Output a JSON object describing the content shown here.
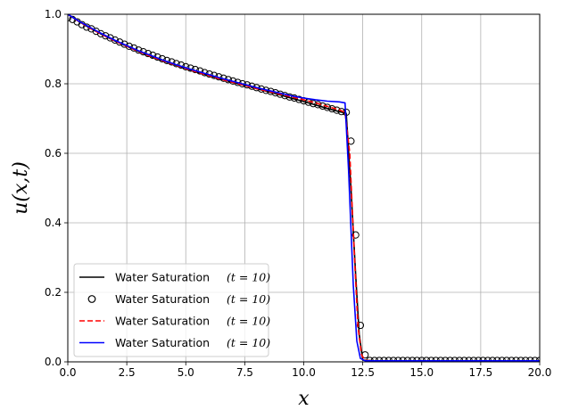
{
  "chart_data": {
    "type": "line",
    "xlabel": "x",
    "ylabel": "u(x,t)",
    "xlim": [
      0,
      20
    ],
    "ylim": [
      0,
      1
    ],
    "grid": true,
    "x_ticks": [
      0,
      2.5,
      5,
      7.5,
      10,
      12.5,
      15,
      17.5,
      20
    ],
    "x_tick_labels": [
      "0.0",
      "2.5",
      "5.0",
      "7.5",
      "10.0",
      "12.5",
      "15.0",
      "17.5",
      "20.0"
    ],
    "y_ticks": [
      0,
      0.2,
      0.4,
      0.6,
      0.8,
      1.0
    ],
    "y_tick_labels": [
      "0.0",
      "0.2",
      "0.4",
      "0.6",
      "0.8",
      "1.0"
    ],
    "legend_position": "lower-left",
    "series": [
      {
        "name": "Water Saturation",
        "name_suffix": "(t = 10)",
        "style": "solid",
        "color": "#000000",
        "marker": "none",
        "x": [
          0,
          0.5,
          1,
          1.5,
          2,
          2.5,
          3,
          3.5,
          4,
          4.5,
          5,
          5.5,
          6,
          6.5,
          7,
          7.5,
          8,
          8.5,
          9,
          9.5,
          10,
          10.5,
          11,
          11.5,
          11.8,
          12.0,
          12.2,
          12.35,
          12.5,
          13,
          14,
          15,
          16,
          17,
          18,
          19,
          20
        ],
        "y": [
          1.0,
          0.978,
          0.958,
          0.94,
          0.923,
          0.908,
          0.893,
          0.879,
          0.867,
          0.855,
          0.844,
          0.833,
          0.823,
          0.813,
          0.804,
          0.795,
          0.786,
          0.777,
          0.768,
          0.758,
          0.749,
          0.739,
          0.729,
          0.72,
          0.715,
          0.5,
          0.25,
          0.08,
          0.005,
          0.003,
          0.003,
          0.003,
          0.003,
          0.003,
          0.003,
          0.003,
          0.003
        ]
      },
      {
        "name": "Water Saturation",
        "name_suffix": "(t = 10)",
        "style": "none",
        "color": "#000000",
        "marker": "open-circle",
        "x": [
          0.0,
          0.2,
          0.4,
          0.6,
          0.8,
          1.0,
          1.2,
          1.4,
          1.6,
          1.8,
          2.0,
          2.2,
          2.4,
          2.6,
          2.8,
          3.0,
          3.2,
          3.4,
          3.6,
          3.8,
          4.0,
          4.2,
          4.4,
          4.6,
          4.8,
          5.0,
          5.2,
          5.4,
          5.6,
          5.8,
          6.0,
          6.2,
          6.4,
          6.6,
          6.8,
          7.0,
          7.2,
          7.4,
          7.6,
          7.8,
          8.0,
          8.2,
          8.4,
          8.6,
          8.8,
          9.0,
          9.2,
          9.4,
          9.6,
          9.8,
          10.0,
          10.2,
          10.4,
          10.6,
          10.8,
          11.0,
          11.2,
          11.4,
          11.6,
          11.8,
          12.0,
          12.2,
          12.4,
          12.6,
          12.8,
          13.0,
          13.2,
          13.4,
          13.6,
          13.8,
          14.0,
          14.2,
          14.4,
          14.6,
          14.8,
          15.0,
          15.2,
          15.4,
          15.6,
          15.8,
          16.0,
          16.2,
          16.4,
          16.6,
          16.8,
          17.0,
          17.2,
          17.4,
          17.6,
          17.8,
          18.0,
          18.2,
          18.4,
          18.6,
          18.8,
          19.0,
          19.2,
          19.4,
          19.6,
          19.8,
          20.0
        ],
        "y": [
          0.99,
          0.985,
          0.978,
          0.97,
          0.963,
          0.958,
          0.951,
          0.944,
          0.938,
          0.932,
          0.926,
          0.92,
          0.914,
          0.908,
          0.903,
          0.897,
          0.892,
          0.887,
          0.882,
          0.877,
          0.872,
          0.867,
          0.863,
          0.858,
          0.854,
          0.849,
          0.845,
          0.841,
          0.837,
          0.832,
          0.828,
          0.824,
          0.82,
          0.816,
          0.812,
          0.808,
          0.804,
          0.8,
          0.797,
          0.793,
          0.789,
          0.785,
          0.781,
          0.778,
          0.774,
          0.77,
          0.766,
          0.762,
          0.759,
          0.755,
          0.751,
          0.747,
          0.743,
          0.74,
          0.736,
          0.732,
          0.728,
          0.724,
          0.72,
          0.718,
          0.635,
          0.365,
          0.105,
          0.02,
          0.004,
          0.004,
          0.004,
          0.004,
          0.004,
          0.004,
          0.004,
          0.004,
          0.004,
          0.004,
          0.004,
          0.004,
          0.004,
          0.004,
          0.004,
          0.004,
          0.004,
          0.004,
          0.004,
          0.004,
          0.004,
          0.004,
          0.004,
          0.004,
          0.004,
          0.004,
          0.004,
          0.004,
          0.004,
          0.004,
          0.004,
          0.004,
          0.004,
          0.004,
          0.004,
          0.004,
          0.004
        ]
      },
      {
        "name": "Water Saturation",
        "name_suffix": "(t = 10)",
        "style": "dashed",
        "color": "#ff0000",
        "marker": "none",
        "x": [
          0,
          0.5,
          1,
          1.5,
          2,
          2.5,
          3,
          3.5,
          4,
          4.5,
          5,
          5.5,
          6,
          6.5,
          7,
          7.5,
          8,
          8.5,
          9,
          9.5,
          10,
          10.5,
          11,
          11.5,
          11.75,
          11.95,
          12.15,
          12.3,
          12.45,
          12.6,
          13,
          14,
          15,
          16,
          17,
          18,
          19,
          20
        ],
        "y": [
          1.0,
          0.978,
          0.958,
          0.94,
          0.923,
          0.908,
          0.893,
          0.879,
          0.867,
          0.855,
          0.844,
          0.833,
          0.823,
          0.813,
          0.804,
          0.795,
          0.786,
          0.778,
          0.77,
          0.762,
          0.754,
          0.745,
          0.735,
          0.725,
          0.718,
          0.6,
          0.3,
          0.1,
          0.02,
          0.004,
          0.003,
          0.003,
          0.003,
          0.003,
          0.003,
          0.003,
          0.003,
          0.003
        ]
      },
      {
        "name": "Water Saturation",
        "name_suffix": "(t = 10)",
        "style": "solid",
        "color": "#0000ff",
        "marker": "none",
        "x": [
          0,
          0.5,
          1,
          1.5,
          2,
          2.5,
          3,
          3.5,
          4,
          4.5,
          5,
          5.5,
          6,
          6.5,
          7,
          7.5,
          8,
          8.5,
          9,
          9.5,
          10,
          10.5,
          11,
          11.5,
          11.75,
          11.9,
          12.1,
          12.25,
          12.4,
          12.6,
          13,
          14,
          15,
          16,
          17,
          18,
          19,
          20
        ],
        "y": [
          1.0,
          0.979,
          0.96,
          0.942,
          0.925,
          0.91,
          0.895,
          0.882,
          0.869,
          0.857,
          0.846,
          0.836,
          0.826,
          0.816,
          0.807,
          0.798,
          0.789,
          0.781,
          0.773,
          0.765,
          0.759,
          0.754,
          0.75,
          0.748,
          0.745,
          0.55,
          0.22,
          0.06,
          0.01,
          0.003,
          0.003,
          0.003,
          0.003,
          0.003,
          0.003,
          0.003,
          0.003,
          0.003
        ]
      }
    ]
  }
}
